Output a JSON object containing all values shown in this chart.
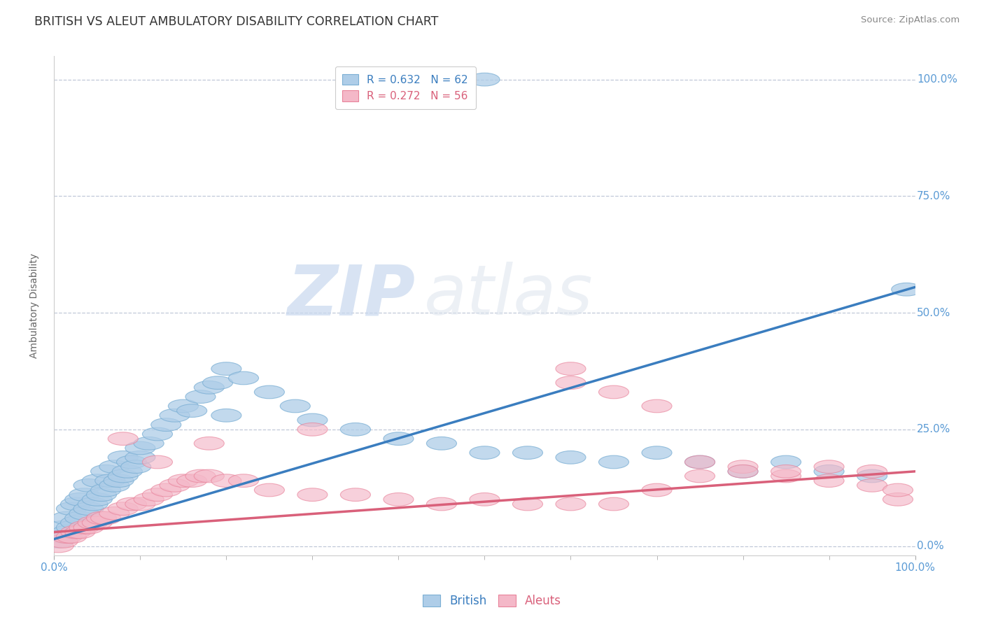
{
  "title": "BRITISH VS ALEUT AMBULATORY DISABILITY CORRELATION CHART",
  "source": "Source: ZipAtlas.com",
  "ylabel": "Ambulatory Disability",
  "ytick_labels": [
    "0.0%",
    "25.0%",
    "50.0%",
    "75.0%",
    "100.0%"
  ],
  "ytick_values": [
    0,
    25,
    50,
    75,
    100
  ],
  "xlim": [
    0,
    100
  ],
  "ylim": [
    -2,
    105
  ],
  "legend_british": "R = 0.632   N = 62",
  "legend_aleuts": "R = 0.272   N = 56",
  "british_color": "#aecde8",
  "aleuts_color": "#f4b8c8",
  "british_edge_color": "#7bafd4",
  "aleuts_edge_color": "#e8829a",
  "british_line_color": "#3a7dbf",
  "aleuts_line_color": "#d9607a",
  "background_color": "#ffffff",
  "watermark_zip": "ZIP",
  "watermark_atlas": "atlas",
  "british_points_x": [
    0.5,
    1,
    1,
    1.5,
    1.5,
    2,
    2,
    2.5,
    2.5,
    3,
    3,
    3.5,
    3.5,
    4,
    4,
    4.5,
    5,
    5,
    5.5,
    6,
    6,
    6.5,
    7,
    7,
    7.5,
    8,
    8,
    8.5,
    9,
    9.5,
    10,
    10,
    11,
    12,
    13,
    14,
    15,
    16,
    17,
    18,
    19,
    20,
    22,
    25,
    28,
    30,
    35,
    40,
    45,
    50,
    55,
    60,
    65,
    70,
    75,
    80,
    85,
    90,
    95,
    99,
    50,
    20
  ],
  "british_points_y": [
    1,
    2,
    4,
    3,
    6,
    4,
    8,
    5,
    9,
    6,
    10,
    7,
    11,
    8,
    13,
    9,
    10,
    14,
    11,
    12,
    16,
    14,
    13,
    17,
    14,
    15,
    19,
    16,
    18,
    17,
    19,
    21,
    22,
    24,
    26,
    28,
    30,
    29,
    32,
    34,
    35,
    38,
    36,
    33,
    30,
    27,
    25,
    23,
    22,
    20,
    20,
    19,
    18,
    20,
    18,
    16,
    18,
    16,
    15,
    55,
    100,
    28
  ],
  "aleuts_points_x": [
    0.5,
    1,
    1.5,
    2,
    2.5,
    3,
    3.5,
    4,
    4.5,
    5,
    5.5,
    6,
    7,
    8,
    9,
    10,
    11,
    12,
    13,
    14,
    15,
    16,
    17,
    18,
    20,
    22,
    25,
    30,
    35,
    40,
    45,
    50,
    55,
    60,
    65,
    70,
    75,
    80,
    85,
    90,
    95,
    98,
    8,
    12,
    18,
    30,
    60,
    65,
    70,
    75,
    80,
    85,
    90,
    95,
    98,
    60
  ],
  "aleuts_points_y": [
    0,
    1,
    2,
    2,
    3,
    3,
    4,
    4,
    5,
    5,
    6,
    6,
    7,
    8,
    9,
    9,
    10,
    11,
    12,
    13,
    14,
    14,
    15,
    15,
    14,
    14,
    12,
    11,
    11,
    10,
    9,
    10,
    9,
    9,
    9,
    12,
    15,
    17,
    15,
    17,
    13,
    10,
    23,
    18,
    22,
    25,
    35,
    33,
    30,
    18,
    16,
    16,
    14,
    16,
    12,
    38
  ],
  "british_slope": 0.54,
  "british_intercept": 1.5,
  "aleuts_slope": 0.13,
  "aleuts_intercept": 3.0
}
